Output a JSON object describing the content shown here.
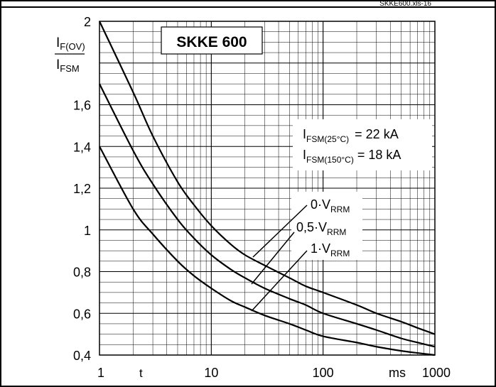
{
  "chart_data": {
    "type": "line",
    "file_label": "SKKE600.xls-16",
    "title": "SKKE 600",
    "y_label": {
      "base": "I",
      "num_sub": "F(OV)",
      "den_sub": "FSM"
    },
    "x_label": "t",
    "x_unit": "ms",
    "x_scale": "log",
    "xlim": [
      1,
      1000
    ],
    "ylim": [
      0.4,
      2.0
    ],
    "x_ticks": [
      {
        "value": 1,
        "label": "1"
      },
      {
        "value": 10,
        "label": "10"
      },
      {
        "value": 100,
        "label": "100"
      },
      {
        "value": 1000,
        "label": "1000"
      }
    ],
    "y_ticks": [
      {
        "value": 0.4,
        "label": "0,4"
      },
      {
        "value": 0.6,
        "label": "0,6"
      },
      {
        "value": 0.8,
        "label": "0,8"
      },
      {
        "value": 1.0,
        "label": "1"
      },
      {
        "value": 1.2,
        "label": "1,2"
      },
      {
        "value": 1.4,
        "label": "1,4"
      },
      {
        "value": 1.6,
        "label": "1,6"
      },
      {
        "value": 2.0,
        "label": "2"
      }
    ],
    "grid": true,
    "annotations": [
      {
        "base": "I",
        "sub": "FSM(25°C)",
        "text": "= 22 kA"
      },
      {
        "base": "I",
        "sub": "FSM(150°C)",
        "text": "= 18 kA"
      }
    ],
    "series": [
      {
        "label_prefix": "0·V",
        "label_sub": "RRM",
        "x": [
          1,
          2,
          3,
          5,
          7,
          10,
          15,
          20,
          30,
          50,
          70,
          100,
          200,
          300,
          500,
          700,
          1000
        ],
        "y": [
          2.0,
          1.66,
          1.45,
          1.23,
          1.12,
          1.02,
          0.93,
          0.88,
          0.83,
          0.77,
          0.73,
          0.7,
          0.64,
          0.6,
          0.56,
          0.53,
          0.5
        ]
      },
      {
        "label_prefix": "0,5·V",
        "label_sub": "RRM",
        "x": [
          1,
          2,
          3,
          5,
          7,
          10,
          15,
          20,
          30,
          50,
          70,
          100,
          200,
          300,
          500,
          700,
          1000
        ],
        "y": [
          1.7,
          1.38,
          1.22,
          1.05,
          0.96,
          0.88,
          0.81,
          0.77,
          0.72,
          0.67,
          0.64,
          0.6,
          0.55,
          0.52,
          0.48,
          0.46,
          0.44
        ]
      },
      {
        "label_prefix": "1·V",
        "label_sub": "RRM",
        "x": [
          1,
          2,
          3,
          5,
          7,
          10,
          15,
          20,
          30,
          50,
          70,
          100,
          200,
          300,
          500,
          700,
          1000
        ],
        "y": [
          1.4,
          1.1,
          0.98,
          0.85,
          0.78,
          0.72,
          0.66,
          0.63,
          0.59,
          0.55,
          0.52,
          0.49,
          0.46,
          0.44,
          0.42,
          0.41,
          0.4
        ]
      }
    ]
  }
}
